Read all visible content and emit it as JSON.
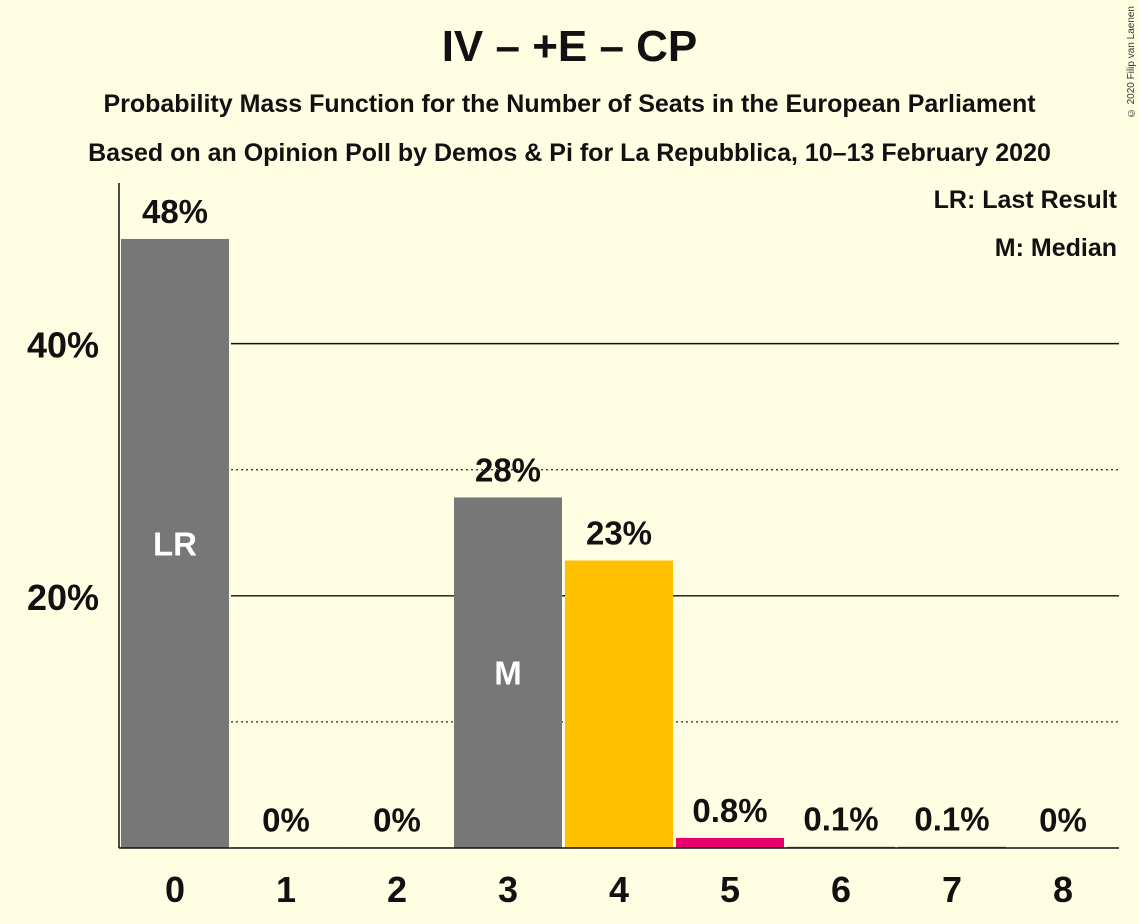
{
  "header": {
    "title": "IV – +E – CP",
    "subtitle_1": "Probability Mass Function for the Number of Seats in the European Parliament",
    "subtitle_2": "Based on an Opinion Poll by Demos & Pi for La Repubblica, 10–13 February 2020",
    "copyright": "© 2020 Filip van Laenen"
  },
  "legend": {
    "last_result": "LR: Last Result",
    "median": "M: Median"
  },
  "chart_data": {
    "type": "bar",
    "categories": [
      "0",
      "1",
      "2",
      "3",
      "4",
      "5",
      "6",
      "7",
      "8"
    ],
    "values": [
      48.3,
      0.05,
      0.05,
      27.8,
      22.8,
      0.8,
      0.1,
      0.1,
      0.02
    ],
    "data_labels": [
      "48%",
      "0%",
      "0%",
      "28%",
      "23%",
      "0.8%",
      "0.1%",
      "0.1%",
      "0%"
    ],
    "bar_colors": [
      "#777777",
      "#777777",
      "#777777",
      "#777777",
      "#FFC000",
      "#E8006D",
      "#777777",
      "#777777",
      "#777777"
    ],
    "bar_markers": [
      "LR",
      "",
      "",
      "M",
      "",
      "",
      "",
      "",
      ""
    ],
    "ylim": [
      0,
      52.5
    ],
    "yticks": [
      {
        "value": 20,
        "label": "20%"
      },
      {
        "value": 40,
        "label": "40%"
      }
    ],
    "minor_gridlines": [
      10,
      30
    ],
    "grid": true,
    "legend_position": "top-right"
  }
}
